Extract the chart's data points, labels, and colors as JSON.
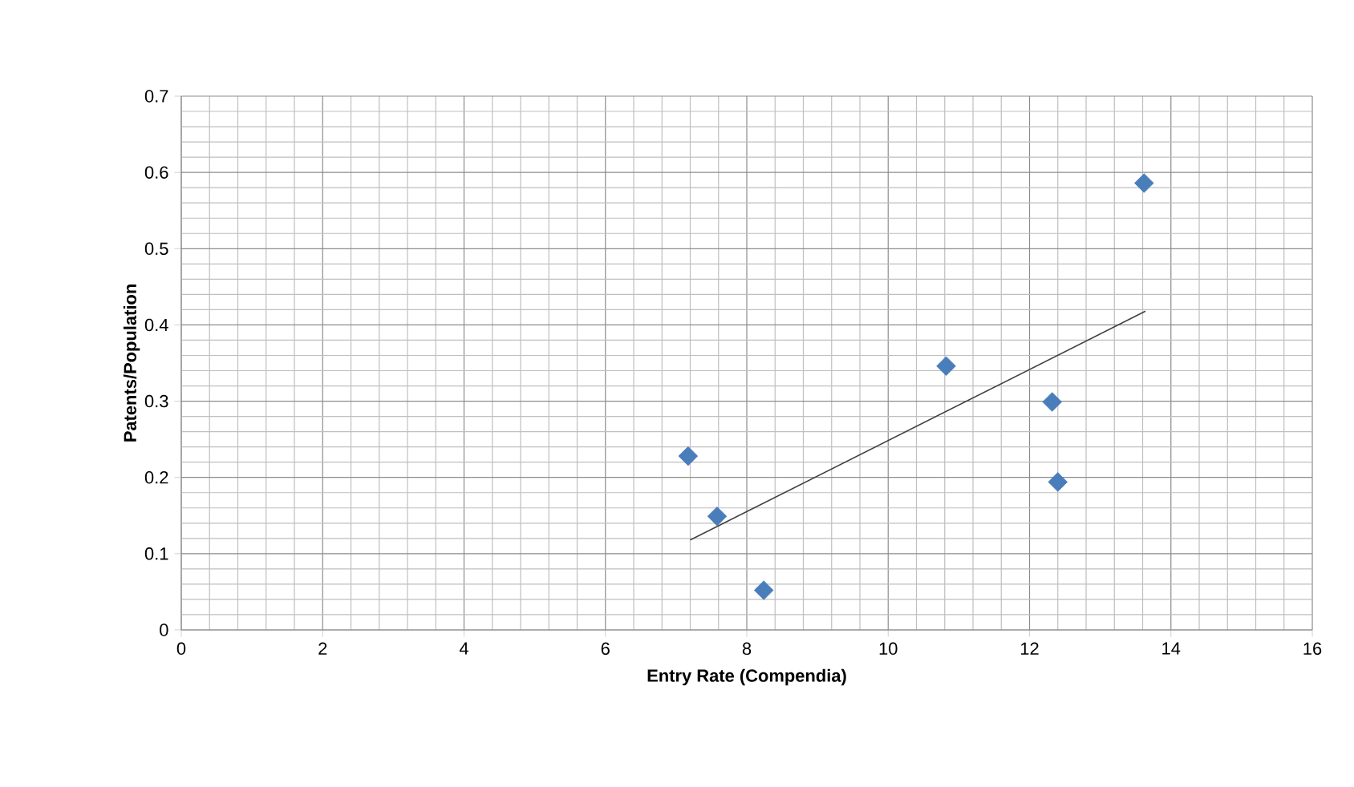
{
  "chart_data": {
    "type": "scatter",
    "xlabel": "Entry Rate (Compendia)",
    "ylabel": "Patents/Population",
    "xlim": [
      0,
      16
    ],
    "xticks": [
      0,
      2,
      4,
      6,
      8,
      10,
      12,
      14,
      16
    ],
    "ylim": [
      0,
      0.7
    ],
    "yticks": [
      0,
      0.1,
      0.2,
      0.3,
      0.4,
      0.5,
      0.6,
      0.7
    ],
    "grid": true,
    "marker": "diamond",
    "series": [
      {
        "color": "#4a7ebb",
        "x": [
          7.17,
          7.58,
          8.24,
          10.82,
          12.32,
          12.4,
          13.62
        ],
        "values": [
          0.228,
          0.149,
          0.052,
          0.346,
          0.299,
          0.194,
          0.586
        ]
      },
      {
        "type": "line",
        "color": "#404040",
        "marker": "none",
        "line_style": "solid",
        "x": [
          7.2,
          13.64
        ],
        "values": [
          0.118,
          0.418
        ]
      }
    ]
  }
}
